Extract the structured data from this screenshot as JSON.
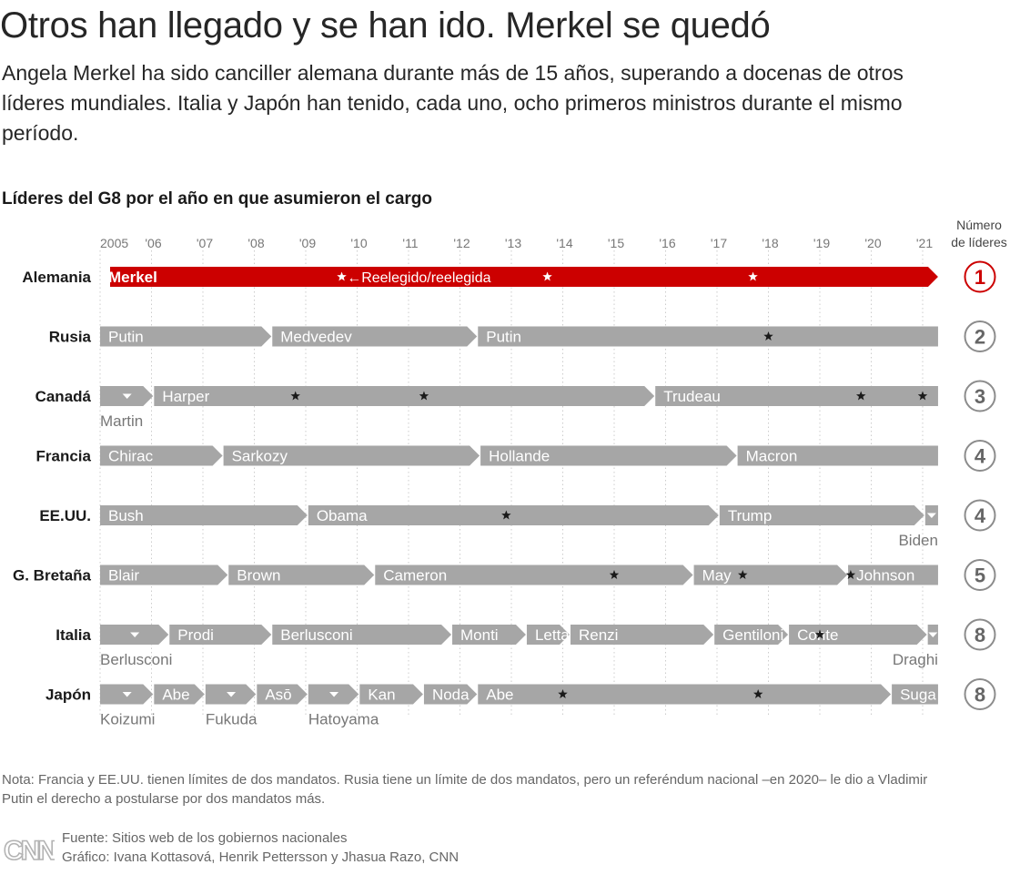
{
  "title": "Otros han llegado y se han ido. Merkel se quedó",
  "subtitle": "Angela Merkel ha sido canciller alemana durante más de 15 años, superando a docenas de otros líderes mundiales. Italia y Japón han tenido, cada uno, ocho primeros ministros durante el mismo período.",
  "chart_title": "Líderes del G8 por el año en que asumieron el cargo",
  "count_header": [
    "Número",
    "de líderes"
  ],
  "note": "Nota: Francia y EE.UU. tienen límites de dos mandatos. Rusia tiene un límite de dos mandatos, pero un referéndum nacional –en 2020– le dio a Vladimir Putin el derecho a postularse por dos mandatos más.",
  "source": "Fuente: Sitios web de los gobiernos nacionales",
  "credit": "Gráfico: Ivana Kottasová, Henrik Pettersson y Jhasua Razo, CNN",
  "logo_text": "CNN",
  "colors": {
    "highlight": "#cc0000",
    "bar": "#a6a6a6",
    "text": "#262626",
    "muted": "#777777",
    "grid": "#cccccc"
  },
  "chart_data": {
    "type": "timeline",
    "x_ticks": [
      "2005",
      "'06",
      "'07",
      "'08",
      "'09",
      "'10",
      "'11",
      "'12",
      "'13",
      "'14",
      "'15",
      "'16",
      "'17",
      "'18",
      "'19",
      "'20",
      "'21"
    ],
    "xlim": [
      2005,
      2021.3
    ],
    "star_meaning": "Reelegido/reelegida",
    "countries": [
      {
        "name": "Alemania",
        "count": "1",
        "highlight": true,
        "leaders": [
          {
            "name": "Merkel",
            "start": 2005,
            "end": 2021.3,
            "label_pos": "inside"
          }
        ],
        "stars": [
          2009.7,
          2013.7,
          2017.7
        ],
        "annotation": {
          "text": "←Reelegido/reelegida",
          "at": 2009.8
        }
      },
      {
        "name": "Rusia",
        "count": "2",
        "leaders": [
          {
            "name": "Putin",
            "start": 2005,
            "end": 2008.35,
            "label_pos": "inside"
          },
          {
            "name": "Medvedev",
            "start": 2008.35,
            "end": 2012.35,
            "label_pos": "inside"
          },
          {
            "name": "Putin",
            "start": 2012.35,
            "end": 2021.3,
            "label_pos": "inside"
          }
        ],
        "stars": [
          2018.0
        ]
      },
      {
        "name": "Canadá",
        "count": "3",
        "leaders": [
          {
            "name": "Martin",
            "start": 2005,
            "end": 2006.05,
            "label_pos": "below"
          },
          {
            "name": "Harper",
            "start": 2006.05,
            "end": 2015.8,
            "label_pos": "inside"
          },
          {
            "name": "Trudeau",
            "start": 2015.8,
            "end": 2021.3,
            "label_pos": "inside"
          }
        ],
        "stars": [
          2008.8,
          2011.3,
          2019.8,
          2021.0
        ]
      },
      {
        "name": "Francia",
        "count": "4",
        "leaders": [
          {
            "name": "Chirac",
            "start": 2005,
            "end": 2007.4,
            "label_pos": "inside"
          },
          {
            "name": "Sarkozy",
            "start": 2007.4,
            "end": 2012.4,
            "label_pos": "inside"
          },
          {
            "name": "Hollande",
            "start": 2012.4,
            "end": 2017.4,
            "label_pos": "inside"
          },
          {
            "name": "Macron",
            "start": 2017.4,
            "end": 2021.3,
            "label_pos": "inside"
          }
        ],
        "stars": []
      },
      {
        "name": "EE.UU.",
        "count": "4",
        "leaders": [
          {
            "name": "Bush",
            "start": 2005,
            "end": 2009.05,
            "label_pos": "inside"
          },
          {
            "name": "Obama",
            "start": 2009.05,
            "end": 2017.05,
            "label_pos": "inside"
          },
          {
            "name": "Trump",
            "start": 2017.05,
            "end": 2021.05,
            "label_pos": "inside"
          },
          {
            "name": "Biden",
            "start": 2021.05,
            "end": 2021.3,
            "label_pos": "below"
          }
        ],
        "stars": [
          2012.9
        ]
      },
      {
        "name": "G. Bretaña",
        "count": "5",
        "leaders": [
          {
            "name": "Blair",
            "start": 2005,
            "end": 2007.5,
            "label_pos": "inside"
          },
          {
            "name": "Brown",
            "start": 2007.5,
            "end": 2010.35,
            "label_pos": "inside"
          },
          {
            "name": "Cameron",
            "start": 2010.35,
            "end": 2016.55,
            "label_pos": "inside"
          },
          {
            "name": "May",
            "start": 2016.55,
            "end": 2019.55,
            "label_pos": "inside"
          },
          {
            "name": "Johnson",
            "start": 2019.55,
            "end": 2021.3,
            "label_pos": "inside"
          }
        ],
        "stars": [
          2015.0,
          2017.5,
          2019.6
        ]
      },
      {
        "name": "Italia",
        "count": "8",
        "leaders": [
          {
            "name": "Berlusconi",
            "start": 2005,
            "end": 2006.35,
            "label_pos": "below"
          },
          {
            "name": "Prodi",
            "start": 2006.35,
            "end": 2008.35,
            "label_pos": "inside"
          },
          {
            "name": "Berlusconi",
            "start": 2008.35,
            "end": 2011.85,
            "label_pos": "inside"
          },
          {
            "name": "Monti",
            "start": 2011.85,
            "end": 2013.3,
            "label_pos": "inside"
          },
          {
            "name": "Letta",
            "start": 2013.3,
            "end": 2014.15,
            "label_pos": "inside"
          },
          {
            "name": "Renzi",
            "start": 2014.15,
            "end": 2016.95,
            "label_pos": "inside"
          },
          {
            "name": "Gentiloni",
            "start": 2016.95,
            "end": 2018.4,
            "label_pos": "inside"
          },
          {
            "name": "Conte",
            "start": 2018.4,
            "end": 2021.1,
            "label_pos": "inside"
          },
          {
            "name": "Draghi",
            "start": 2021.1,
            "end": 2021.3,
            "label_pos": "below"
          }
        ],
        "stars": [
          2019.0
        ]
      },
      {
        "name": "Japón",
        "count": "8",
        "leaders": [
          {
            "name": "Koizumi",
            "start": 2005,
            "end": 2006.05,
            "label_pos": "below"
          },
          {
            "name": "Abe",
            "start": 2006.05,
            "end": 2007.05,
            "label_pos": "inside"
          },
          {
            "name": "Fukuda",
            "start": 2007.05,
            "end": 2008.05,
            "label_pos": "below"
          },
          {
            "name": "Asō",
            "start": 2008.05,
            "end": 2009.05,
            "label_pos": "inside"
          },
          {
            "name": "Hatoyama",
            "start": 2009.05,
            "end": 2010.05,
            "label_pos": "below"
          },
          {
            "name": "Kan",
            "start": 2010.05,
            "end": 2011.3,
            "label_pos": "inside"
          },
          {
            "name": "Noda",
            "start": 2011.3,
            "end": 2012.35,
            "label_pos": "inside"
          },
          {
            "name": "Abe",
            "start": 2012.35,
            "end": 2020.4,
            "label_pos": "inside"
          },
          {
            "name": "Suga",
            "start": 2020.4,
            "end": 2021.3,
            "label_pos": "inside"
          }
        ],
        "stars": [
          2014.0,
          2017.8
        ]
      }
    ]
  }
}
